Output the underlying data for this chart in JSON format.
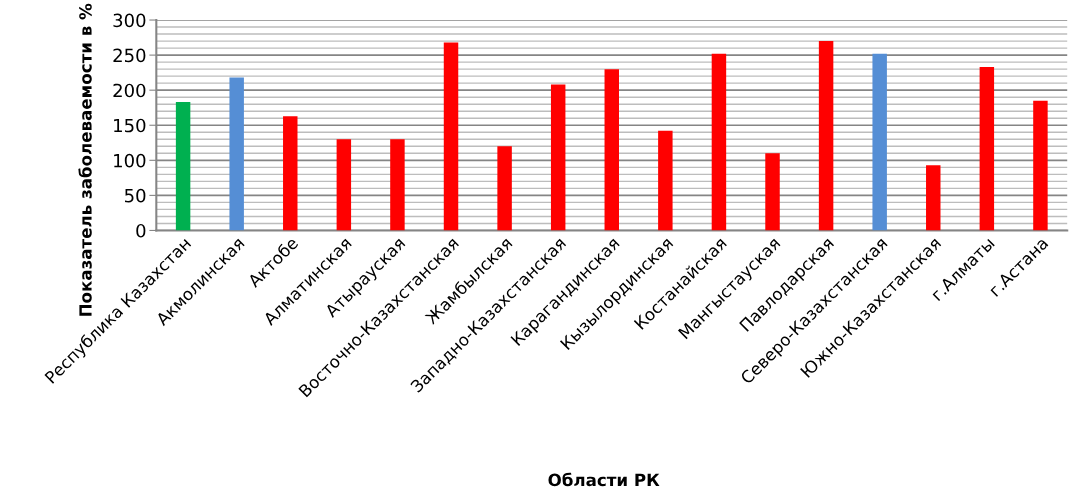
{
  "chart_data": {
    "type": "bar",
    "categories": [
      "Республика Казахстан",
      "Акмолинская",
      "Актобе",
      "Алматинская",
      "Атырауская",
      "Восточно-Казахстанская",
      "Жамбылская",
      "Западно-Казахстанская",
      "Карагандинская",
      "Кызылординская",
      "Костанайская",
      "Мангыстауская",
      "Павлодарская",
      "Северо-Казахстанская",
      "Южно-Казахстанская",
      "г.Алматы",
      "г.Астана"
    ],
    "values": [
      183,
      218,
      163,
      130,
      130,
      268,
      120,
      208,
      230,
      142,
      252,
      110,
      270,
      252,
      93,
      233,
      185
    ],
    "colors": [
      "#00b050",
      "#558ed5",
      "#ff0000",
      "#ff0000",
      "#ff0000",
      "#ff0000",
      "#ff0000",
      "#ff0000",
      "#ff0000",
      "#ff0000",
      "#ff0000",
      "#ff0000",
      "#ff0000",
      "#558ed5",
      "#ff0000",
      "#ff0000",
      "#ff0000"
    ],
    "ylim": [
      0,
      300
    ],
    "yticks": [
      0,
      {
        "value": 10,
        "label": null
      },
      {
        "value": 20,
        "label": null
      },
      {
        "value": 30,
        "label": null
      },
      {
        "value": 40,
        "label": null
      },
      50,
      {
        "value": 60,
        "label": null
      },
      {
        "value": 70,
        "label": null
      },
      {
        "value": 80,
        "label": null
      },
      {
        "value": 90,
        "label": null
      },
      100,
      {
        "value": 110,
        "label": null
      },
      {
        "value": 120,
        "label": null
      },
      {
        "value": 130,
        "label": null
      },
      {
        "value": 140,
        "label": null
      },
      150,
      {
        "value": 160,
        "label": null
      },
      {
        "value": 170,
        "label": null
      },
      {
        "value": 180,
        "label": null
      },
      {
        "value": 190,
        "label": null
      },
      200,
      {
        "value": 210,
        "label": null
      },
      {
        "value": 220,
        "label": null
      },
      {
        "value": 230,
        "label": null
      },
      {
        "value": 240,
        "label": null
      },
      250,
      {
        "value": 260,
        "label": null
      },
      {
        "value": 270,
        "label": null
      },
      {
        "value": 280,
        "label": null
      },
      {
        "value": 290,
        "label": null
      },
      300
    ],
    "grid": "y",
    "xlabel": "Области РК",
    "ylabel": "Показатель заболеваемости в %"
  }
}
